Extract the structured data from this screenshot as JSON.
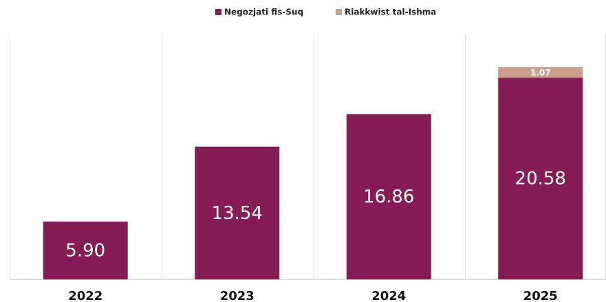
{
  "chart_data": {
    "type": "stacked_bar",
    "categories": [
      "2022",
      "2023",
      "2024",
      "2025"
    ],
    "series": [
      {
        "name": "Negozjati fis-Suq",
        "color": "#861c55",
        "values": [
          5.9,
          13.54,
          16.86,
          20.58
        ],
        "value_labels": [
          "5.90",
          "13.54",
          "16.86",
          "20.58"
        ]
      },
      {
        "name": "Riakkwist tal-Ishma",
        "color": "#c8a08a",
        "values": [
          null,
          null,
          null,
          1.07
        ]
      }
    ],
    "ylim": [
      0,
      25
    ],
    "legend": "top"
  }
}
